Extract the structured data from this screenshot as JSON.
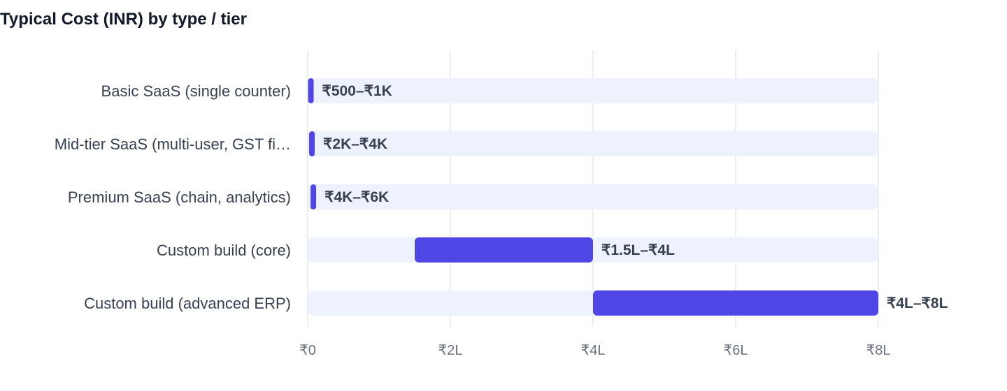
{
  "chart_data": {
    "type": "bar",
    "orientation": "horizontal",
    "title": "Typical Cost (INR) by type / tier",
    "xlabel": "",
    "ylabel": "",
    "xlim": [
      0,
      800000
    ],
    "grid": true,
    "x_ticks": [
      {
        "value": 0,
        "label": "₹0"
      },
      {
        "value": 200000,
        "label": "₹2L"
      },
      {
        "value": 400000,
        "label": "₹4L"
      },
      {
        "value": 600000,
        "label": "₹6L"
      },
      {
        "value": 800000,
        "label": "₹8L"
      }
    ],
    "categories": [
      "Basic SaaS (single counter)",
      "Mid-tier SaaS (multi-user, GST fi…",
      "Premium SaaS (chain, analytics)",
      "Custom build (core)",
      "Custom build (advanced ERP)"
    ],
    "ranges": [
      {
        "min": 500,
        "max": 1000,
        "label": "₹500–₹1K"
      },
      {
        "min": 2000,
        "max": 4000,
        "label": "₹2K–₹4K"
      },
      {
        "min": 4000,
        "max": 6000,
        "label": "₹4K–₹6K"
      },
      {
        "min": 150000,
        "max": 400000,
        "label": "₹1.5L–₹4L"
      },
      {
        "min": 400000,
        "max": 800000,
        "label": "₹4L–₹8L"
      }
    ],
    "colors": {
      "bar": "#4f46e5",
      "track": "#eef2fc",
      "grid": "#e5e7eb"
    }
  }
}
